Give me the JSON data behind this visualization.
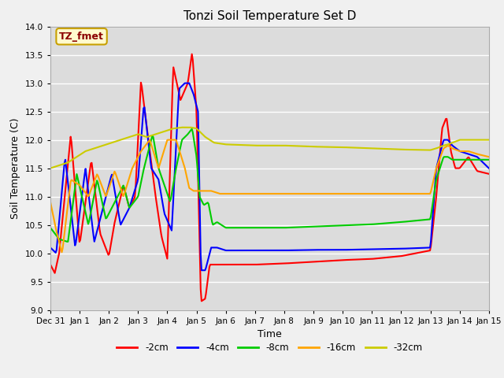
{
  "title": "Tonzi Soil Temperature Set D",
  "xlabel": "Time",
  "ylabel": "Soil Temperature (C)",
  "ylim": [
    9.0,
    14.0
  ],
  "yticks": [
    9.0,
    9.5,
    10.0,
    10.5,
    11.0,
    11.5,
    12.0,
    12.5,
    13.0,
    13.5,
    14.0
  ],
  "annotation_text": "TZ_fmet",
  "annotation_color": "#8B0000",
  "annotation_bg": "#FFFACD",
  "annotation_border": "#C8A000",
  "series_colors": {
    "-2cm": "#FF0000",
    "-4cm": "#0000FF",
    "-8cm": "#00CC00",
    "-16cm": "#FFA500",
    "-32cm": "#CCCC00"
  },
  "legend_labels": [
    "-2cm",
    "-4cm",
    "-8cm",
    "-16cm",
    "-32cm"
  ],
  "plot_bg_color": "#DCDCDC",
  "fig_bg_color": "#F0F0F0",
  "grid_color": "#FFFFFF",
  "x_tick_labels": [
    "Dec 31",
    "Jan 1",
    "Jan 2",
    "Jan 3",
    "Jan 4",
    "Jan 5",
    "Jan 6",
    "Jan 7",
    "Jan 8",
    "Jan 9",
    "Jan 10",
    "Jan 11",
    "Jan 12",
    "Jan 13",
    "Jan 14",
    "Jan 15"
  ]
}
